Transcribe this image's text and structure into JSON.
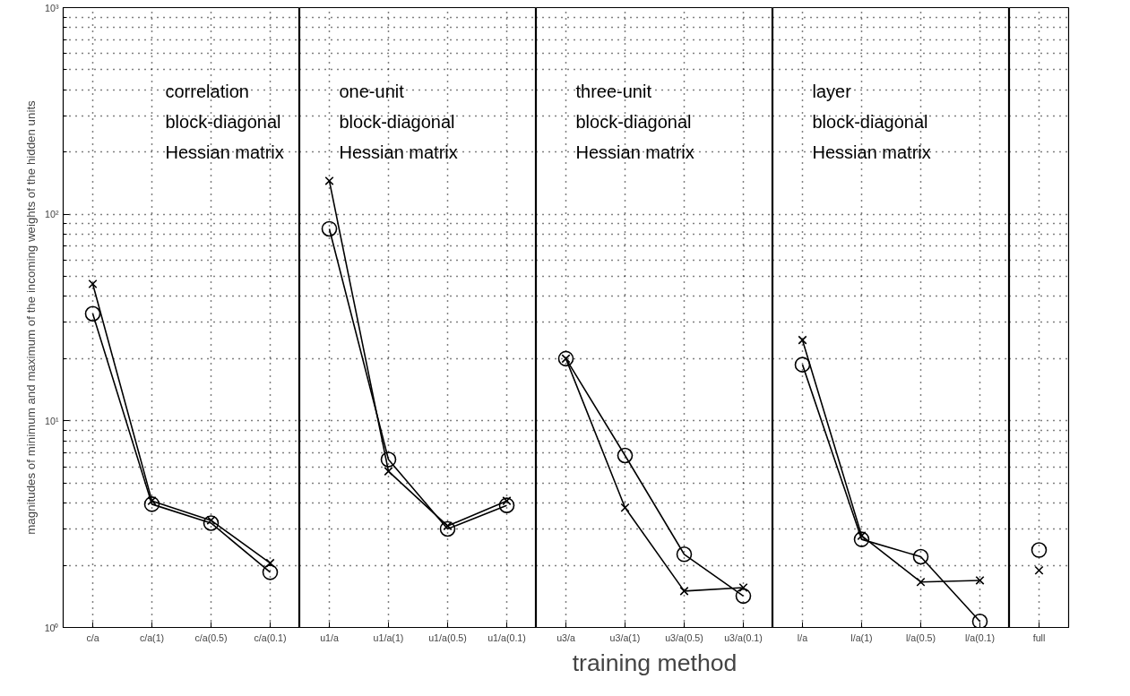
{
  "chart_data": [
    {
      "type": "line",
      "categories": [
        "c/a",
        "c/a(1)",
        "c/a(0.5)",
        "c/a(0.1)"
      ],
      "ylabel": "magnitudes of minimum and maximum of the incoming weights of the hidden units",
      "log": true,
      "ylim": [
        1,
        1000
      ],
      "yticks": [
        {
          "value": 1,
          "label": "10⁰"
        },
        {
          "value": 10,
          "label": "10¹"
        },
        {
          "value": 100,
          "label": "10²"
        },
        {
          "value": 1000,
          "label": "10³"
        }
      ],
      "grid": true,
      "annotations": [
        "correlation\nblock-diagonal\nHessian matrix"
      ],
      "series": [
        {
          "color": "#000000",
          "marker": "cross",
          "values": [
            46,
            4.1,
            3.3,
            2.05
          ]
        },
        {
          "color": "#000000",
          "marker": "circle",
          "values": [
            33,
            3.95,
            3.2,
            1.85
          ]
        }
      ]
    },
    {
      "type": "line",
      "categories": [
        "u1/a",
        "u1/a(1)",
        "u1/a(0.5)",
        "u1/a(0.1)"
      ],
      "log": true,
      "ylim": [
        1,
        1000
      ],
      "yticks": [
        {
          "value": 1,
          "label": null
        },
        {
          "value": 10,
          "label": null
        },
        {
          "value": 100,
          "label": null
        },
        {
          "value": 1000,
          "label": null
        }
      ],
      "grid": true,
      "tick_labels": "x",
      "annotations": [
        "one-unit\nblock-diagonal\nHessian matrix"
      ],
      "series": [
        {
          "color": "#000000",
          "marker": "cross",
          "values": [
            145,
            5.7,
            3.1,
            4.1
          ]
        },
        {
          "color": "#000000",
          "marker": "circle",
          "values": [
            85,
            6.5,
            3.0,
            3.9
          ]
        }
      ]
    },
    {
      "type": "line",
      "categories": [
        "u3/a",
        "u3/a(1)",
        "u3/a(0.5)",
        "u3/a(0.1)"
      ],
      "xlabel": "training method",
      "log": true,
      "ylim": [
        1,
        1000
      ],
      "yticks": [
        {
          "value": 1,
          "label": null
        },
        {
          "value": 10,
          "label": null
        },
        {
          "value": 100,
          "label": null
        },
        {
          "value": 1000,
          "label": null
        }
      ],
      "grid": true,
      "tick_labels": "x",
      "annotations": [
        "three-unit\nblock-diagonal\nHessian matrix"
      ],
      "series": [
        {
          "color": "#000000",
          "marker": "cross",
          "values": [
            20,
            3.8,
            1.5,
            1.56
          ]
        },
        {
          "color": "#000000",
          "marker": "circle",
          "values": [
            20,
            6.8,
            2.26,
            1.42
          ]
        }
      ]
    },
    {
      "type": "line",
      "categories": [
        "l/a",
        "l/a(1)",
        "l/a(0.5)",
        "l/a(0.1)"
      ],
      "log": true,
      "ylim": [
        1,
        1000
      ],
      "yticks": [
        {
          "value": 1,
          "label": null
        },
        {
          "value": 10,
          "label": null
        },
        {
          "value": 100,
          "label": null
        },
        {
          "value": 1000,
          "label": null
        }
      ],
      "grid": true,
      "tick_labels": "x",
      "annotations": [
        "layer\nblock-diagonal\nHessian matrix"
      ],
      "series": [
        {
          "color": "#000000",
          "marker": "cross",
          "values": [
            24.6,
            2.78,
            1.66,
            1.69
          ]
        },
        {
          "color": "#000000",
          "marker": "circle",
          "values": [
            18.7,
            2.67,
            2.2,
            1.07
          ]
        }
      ]
    },
    {
      "type": "scatter",
      "categories": [
        "full"
      ],
      "log": true,
      "ylim": [
        1,
        1000
      ],
      "yticks": [
        {
          "value": 1,
          "label": null
        },
        {
          "value": 10,
          "label": null
        },
        {
          "value": 100,
          "label": null
        },
        {
          "value": 1000,
          "label": null
        }
      ],
      "grid": true,
      "tick_labels": "x",
      "series": [
        {
          "color": "#000000",
          "marker": "cross",
          "values": [
            1.89
          ]
        },
        {
          "color": "#000000",
          "marker": "circle",
          "values": [
            2.37
          ]
        }
      ]
    }
  ]
}
